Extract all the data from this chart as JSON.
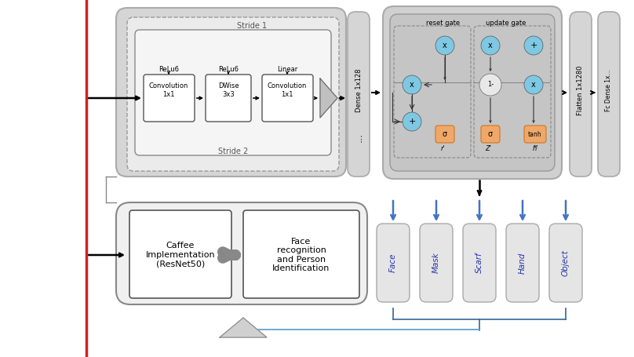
{
  "bg_color": "#ffffff",
  "categories": [
    "Face",
    "Mask",
    "Scarf",
    "Hand",
    "Object"
  ],
  "cat_color_text": "#2233aa",
  "arrow_blue": "#4472c4",
  "arrow_dark": "#222222",
  "gray_box": "#d8d8d8",
  "light_gray": "#e8e8e8",
  "med_gray": "#c8c8c8",
  "orange_fill": "#f0a868",
  "blue_circle": "#7ec8e3",
  "red_line_color": "#cc2222"
}
